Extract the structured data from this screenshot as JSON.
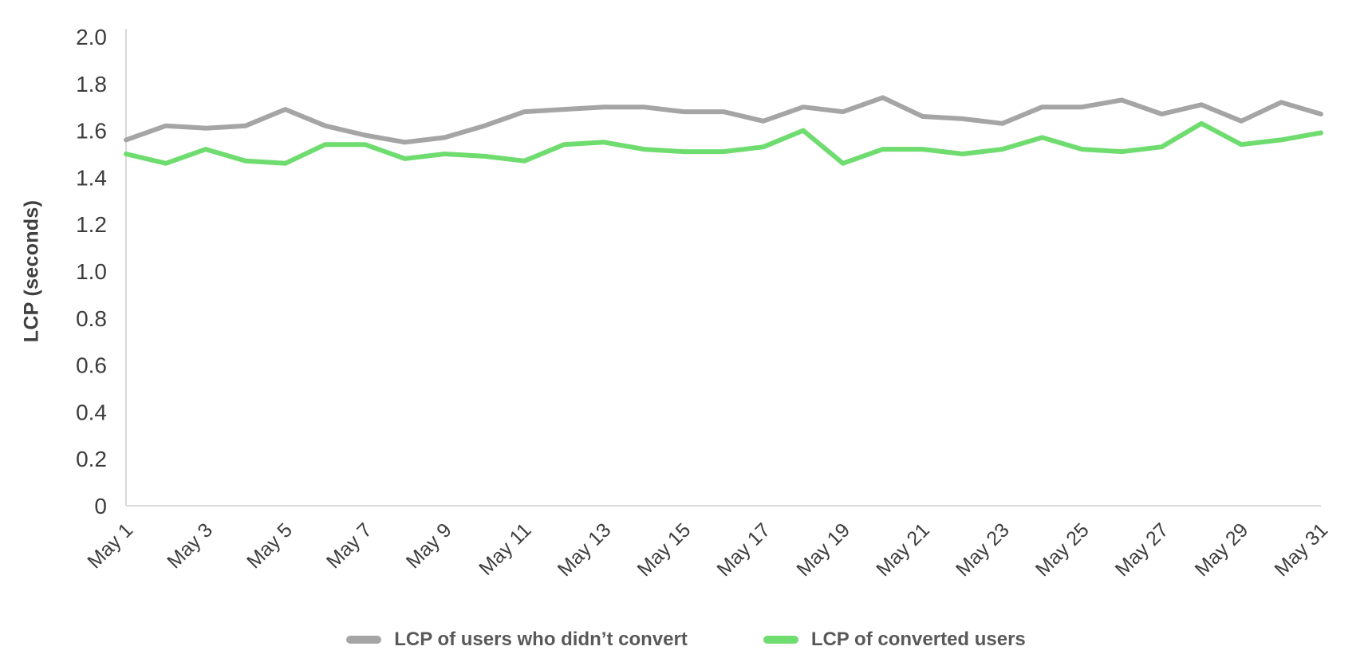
{
  "colors": {
    "background": "#ffffff",
    "axis": "#d9d9d9",
    "tick_text": "#3d3d3d",
    "axis_title_text": "#3f3f3f",
    "legend_text": "#595959",
    "series_gray": "#a5a5a5",
    "series_green": "#6fdc6f"
  },
  "chart_data": {
    "type": "line",
    "title": "",
    "xlabel": "",
    "ylabel": "LCP (seconds)",
    "ylim": [
      0,
      2.0
    ],
    "yticks": [
      0,
      0.2,
      0.4,
      0.6,
      0.8,
      1.0,
      1.2,
      1.4,
      1.6,
      1.8,
      2.0
    ],
    "ytick_labels": [
      "0",
      "0.2",
      "0.4",
      "0.6",
      "0.8",
      "1.0",
      "1.2",
      "1.4",
      "1.6",
      "1.8",
      "2.0"
    ],
    "x": [
      "May 1",
      "May 2",
      "May 3",
      "May 4",
      "May 5",
      "May 6",
      "May 7",
      "May 8",
      "May 9",
      "May 10",
      "May 11",
      "May 12",
      "May 13",
      "May 14",
      "May 15",
      "May 16",
      "May 17",
      "May 18",
      "May 19",
      "May 20",
      "May 21",
      "May 22",
      "May 23",
      "May 24",
      "May 25",
      "May 26",
      "May 27",
      "May 28",
      "May 29",
      "May 30",
      "May 31"
    ],
    "xtick_every": 2,
    "grid": false,
    "legend_position": "bottom",
    "series": [
      {
        "name": "LCP of users who didn’t convert",
        "color": "#a5a5a5",
        "values": [
          1.56,
          1.62,
          1.61,
          1.62,
          1.69,
          1.62,
          1.58,
          1.55,
          1.57,
          1.62,
          1.68,
          1.69,
          1.7,
          1.7,
          1.68,
          1.68,
          1.64,
          1.7,
          1.68,
          1.74,
          1.66,
          1.65,
          1.63,
          1.7,
          1.7,
          1.73,
          1.67,
          1.71,
          1.64,
          1.72,
          1.67
        ]
      },
      {
        "name": "LCP of converted users",
        "color": "#6fdc6f",
        "values": [
          1.5,
          1.46,
          1.52,
          1.47,
          1.46,
          1.54,
          1.54,
          1.48,
          1.5,
          1.49,
          1.47,
          1.54,
          1.55,
          1.52,
          1.51,
          1.51,
          1.53,
          1.6,
          1.46,
          1.52,
          1.52,
          1.5,
          1.52,
          1.57,
          1.52,
          1.51,
          1.53,
          1.63,
          1.54,
          1.56,
          1.59
        ]
      }
    ]
  }
}
